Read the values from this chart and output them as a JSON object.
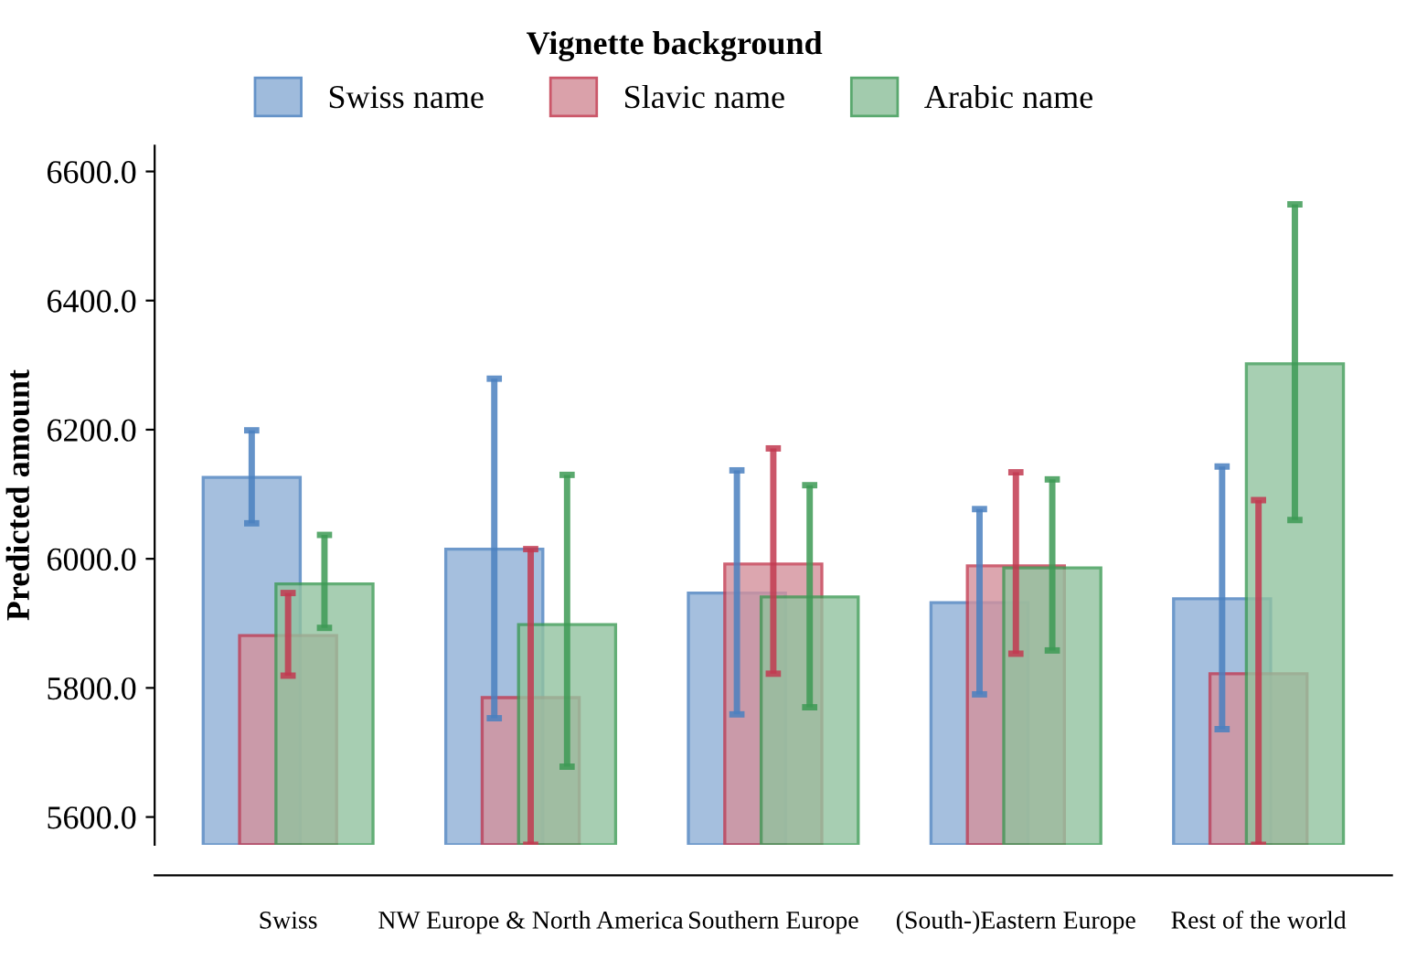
{
  "chart_data": {
    "type": "bar",
    "legend_title": "Vignette background",
    "ylabel": "Predicted amount",
    "categories": [
      "Swiss",
      "NW Europe & North America",
      "Southern Europe",
      "(South-)Eastern Europe",
      "Rest of the world"
    ],
    "series": [
      {
        "name": "Swiss name",
        "color": "#8fb0d6",
        "values": [
          6126,
          6015,
          5947,
          5932,
          5938
        ],
        "errors": [
          [
            6055,
            6199
          ],
          [
            5753,
            6279
          ],
          [
            5759,
            6137
          ],
          [
            5790,
            6077
          ],
          [
            5736,
            6143
          ]
        ]
      },
      {
        "name": "Slavic name",
        "color": "#d4919c",
        "values": [
          5881,
          5785,
          5992,
          5989,
          5822
        ],
        "errors": [
          [
            5819,
            5947
          ],
          [
            5557,
            6015
          ],
          [
            5822,
            6171
          ],
          [
            5853,
            6134
          ],
          [
            5557,
            6091
          ]
        ]
      },
      {
        "name": "Arabic name",
        "color": "#92c39f",
        "values": [
          5961,
          5898,
          5941,
          5986,
          6302
        ],
        "errors": [
          [
            5893,
            6037
          ],
          [
            5678,
            6130
          ],
          [
            5770,
            6114
          ],
          [
            5858,
            6123
          ],
          [
            6060,
            6549
          ]
        ]
      }
    ],
    "ylim": [
      5557,
      6640
    ],
    "yticks": [
      {
        "value": 5600,
        "label": "5600.0"
      },
      {
        "value": 5800,
        "label": "5800.0"
      },
      {
        "value": 6000,
        "label": "6000.0"
      },
      {
        "value": 6200,
        "label": "6200.0"
      },
      {
        "value": 6400,
        "label": "6400.0"
      },
      {
        "value": 6600,
        "label": "6600.0"
      }
    ],
    "grid": false,
    "legend": "top"
  }
}
